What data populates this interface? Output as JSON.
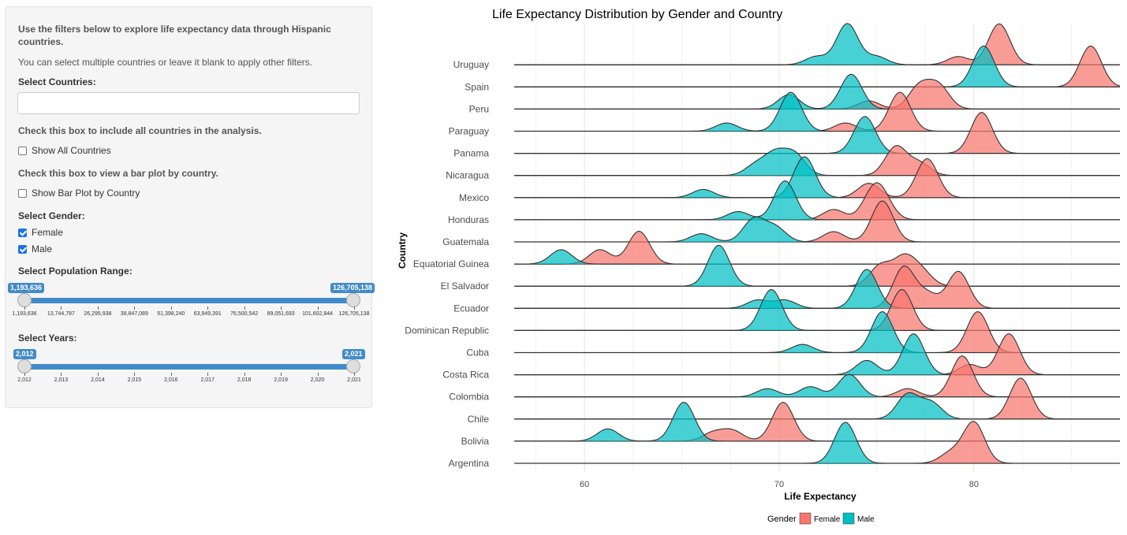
{
  "sidebar": {
    "intro": "Use the filters below to explore life expectancy data through Hispanic countries.",
    "intro_note": "You can select multiple countries or leave it blank to apply other filters.",
    "countries_label": "Select Countries:",
    "countries_value": "",
    "all_hint": "Check this box to include all countries in the analysis.",
    "show_all_label": "Show All Countries",
    "show_all_checked": false,
    "bar_hint": "Check this box to view a bar plot by country.",
    "bar_plot_label": "Show Bar Plot by Country",
    "bar_plot_checked": false,
    "gender_label": "Select Gender:",
    "gender_female": "Female",
    "gender_male": "Male",
    "female_checked": true,
    "male_checked": true,
    "population_label": "Select Population Range:",
    "population_min": "1,193,636",
    "population_max": "126,705,138",
    "population_ticks": [
      "1,193,636",
      "13,744,787",
      "26,295,938",
      "38,847,089",
      "51,398,240",
      "63,949,391",
      "76,500,542",
      "89,051,693",
      "101,602,844",
      "126,705,138"
    ],
    "years_label": "Select Years:",
    "years_min": "2,012",
    "years_max": "2,021",
    "years_ticks": [
      "2,012",
      "2,013",
      "2,014",
      "2,015",
      "2,016",
      "2,017",
      "2,018",
      "2,019",
      "2,020",
      "2,021"
    ]
  },
  "colors": {
    "female": "#F8766D",
    "male": "#00BFC4",
    "accent": "#428bca"
  },
  "chart_data": {
    "type": "ridgeline",
    "title": "Life Expectancy Distribution by Gender and Country",
    "xlabel": "Life Expectancy",
    "ylabel": "Country",
    "xlim": [
      55.5,
      87.5
    ],
    "xticks": [
      60,
      70,
      80
    ],
    "grid": true,
    "legend": {
      "title": "Gender",
      "position": "bottom",
      "entries": [
        "Female",
        "Male"
      ]
    },
    "categories": [
      "Argentina",
      "Bolivia",
      "Chile",
      "Colombia",
      "Costa Rica",
      "Cuba",
      "Dominican Republic",
      "Ecuador",
      "El Salvador",
      "Equatorial Guinea",
      "Guatemala",
      "Honduras",
      "Mexico",
      "Nicaragua",
      "Panama",
      "Paraguay",
      "Peru",
      "Spain",
      "Uruguay"
    ],
    "series": [
      {
        "name": "Female",
        "peaks": [
          [
            [
              78.8,
              0.25
            ],
            [
              80.0,
              1.0
            ]
          ],
          [
            [
              66.6,
              0.2
            ],
            [
              67.6,
              0.25
            ],
            [
              70.2,
              0.95
            ]
          ],
          [
            [
              82.4,
              1.0
            ]
          ],
          [
            [
              76.6,
              0.2
            ],
            [
              79.4,
              1.0
            ]
          ],
          [
            [
              79.8,
              0.25
            ],
            [
              81.8,
              1.0
            ]
          ],
          [
            [
              80.2,
              1.0
            ]
          ],
          [
            [
              76.3,
              1.0
            ]
          ],
          [
            [
              76.4,
              1.0
            ],
            [
              77.6,
              0.35
            ],
            [
              79.2,
              0.9
            ]
          ],
          [
            [
              75.2,
              0.5
            ],
            [
              76.4,
              0.65
            ],
            [
              77.3,
              0.35
            ]
          ],
          [
            [
              60.8,
              0.35
            ],
            [
              62.8,
              0.8
            ]
          ],
          [
            [
              72.8,
              0.25
            ],
            [
              75.3,
              1.0
            ]
          ],
          [
            [
              72.8,
              0.25
            ],
            [
              74.8,
              0.55
            ],
            [
              75.3,
              0.45
            ]
          ],
          [
            [
              74.6,
              0.35
            ],
            [
              77.6,
              0.95
            ]
          ],
          [
            [
              76.0,
              0.7
            ],
            [
              77.2,
              0.3
            ]
          ],
          [
            [
              80.4,
              1.0
            ]
          ],
          [
            [
              73.4,
              0.2
            ],
            [
              76.2,
              0.95
            ]
          ],
          [
            [
              74.6,
              0.2
            ],
            [
              77.2,
              0.55
            ],
            [
              78.2,
              0.55
            ]
          ],
          [
            [
              86.0,
              1.0
            ]
          ],
          [
            [
              79.2,
              0.2
            ],
            [
              81.3,
              1.0
            ]
          ]
        ]
      },
      {
        "name": "Male",
        "peaks": [
          [
            [
              73.4,
              1.0
            ]
          ],
          [
            [
              61.2,
              0.3
            ],
            [
              65.1,
              0.95
            ]
          ],
          [
            [
              76.6,
              0.6
            ],
            [
              77.8,
              0.4
            ]
          ],
          [
            [
              69.4,
              0.2
            ],
            [
              71.6,
              0.25
            ],
            [
              73.6,
              0.55
            ]
          ],
          [
            [
              74.5,
              0.35
            ],
            [
              76.9,
              1.0
            ]
          ],
          [
            [
              71.2,
              0.2
            ],
            [
              75.3,
              1.0
            ]
          ],
          [
            [
              69.6,
              1.0
            ]
          ],
          [
            [
              68.9,
              0.2
            ],
            [
              70.3,
              0.2
            ],
            [
              74.5,
              0.95
            ]
          ],
          [
            [
              66.9,
              1.0
            ]
          ],
          [
            [
              58.8,
              0.35
            ]
          ],
          [
            [
              66.0,
              0.2
            ],
            [
              68.7,
              0.55
            ],
            [
              69.8,
              0.35
            ]
          ],
          [
            [
              67.9,
              0.2
            ],
            [
              70.3,
              0.95
            ]
          ],
          [
            [
              66.1,
              0.2
            ],
            [
              71.3,
              1.0
            ]
          ],
          [
            [
              68.8,
              0.25
            ],
            [
              69.8,
              0.5
            ],
            [
              70.8,
              0.5
            ]
          ],
          [
            [
              74.4,
              0.9
            ]
          ],
          [
            [
              67.3,
              0.2
            ],
            [
              70.6,
              0.95
            ]
          ],
          [
            [
              70.5,
              0.35
            ],
            [
              73.7,
              0.85
            ]
          ],
          [
            [
              80.5,
              1.0
            ]
          ],
          [
            [
              71.9,
              0.2
            ],
            [
              73.5,
              1.0
            ],
            [
              75.0,
              0.2
            ]
          ]
        ]
      }
    ]
  }
}
